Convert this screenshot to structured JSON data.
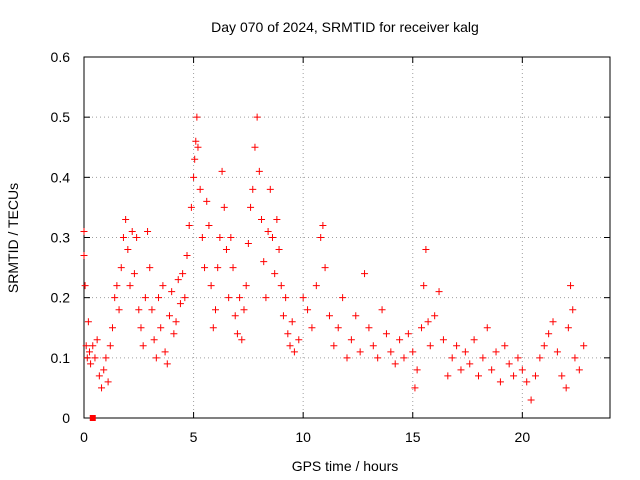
{
  "chart_data": {
    "type": "scatter",
    "title": "Day 070 of 2024, SRMTID for receiver kalg",
    "xlabel": "GPS time / hours",
    "ylabel": "SRMTID / TECUs",
    "xlim": [
      0,
      24
    ],
    "ylim": [
      0,
      0.6
    ],
    "xticks": [
      0,
      5,
      10,
      15,
      20
    ],
    "xtick_labels": [
      "0",
      "5",
      "10",
      "15",
      "20"
    ],
    "yticks": [
      0,
      0.1,
      0.2,
      0.3,
      0.4,
      0.5,
      0.6
    ],
    "ytick_labels": [
      "0",
      "0.1",
      "0.2",
      "0.3",
      "0.4",
      "0.5",
      "0.6"
    ],
    "grid": true,
    "marker": "plus",
    "color": "#ff0000",
    "series": [
      {
        "name": "SRMTID",
        "points": [
          [
            0.0,
            0.31
          ],
          [
            0.0,
            0.27
          ],
          [
            0.05,
            0.22
          ],
          [
            0.1,
            0.12
          ],
          [
            0.15,
            0.1
          ],
          [
            0.2,
            0.16
          ],
          [
            0.25,
            0.11
          ],
          [
            0.3,
            0.09
          ],
          [
            0.4,
            0.12
          ],
          [
            0.5,
            0.1
          ],
          [
            0.6,
            0.13
          ],
          [
            0.7,
            0.07
          ],
          [
            0.8,
            0.05
          ],
          [
            0.9,
            0.08
          ],
          [
            1.0,
            0.1
          ],
          [
            1.1,
            0.06
          ],
          [
            1.2,
            0.12
          ],
          [
            1.3,
            0.15
          ],
          [
            1.4,
            0.2
          ],
          [
            1.5,
            0.22
          ],
          [
            1.6,
            0.18
          ],
          [
            1.7,
            0.25
          ],
          [
            1.8,
            0.3
          ],
          [
            1.9,
            0.33
          ],
          [
            2.0,
            0.28
          ],
          [
            2.1,
            0.22
          ],
          [
            2.2,
            0.31
          ],
          [
            2.3,
            0.24
          ],
          [
            2.4,
            0.3
          ],
          [
            2.5,
            0.18
          ],
          [
            2.6,
            0.15
          ],
          [
            2.7,
            0.12
          ],
          [
            2.8,
            0.2
          ],
          [
            2.9,
            0.31
          ],
          [
            3.0,
            0.25
          ],
          [
            3.1,
            0.18
          ],
          [
            3.2,
            0.13
          ],
          [
            3.3,
            0.1
          ],
          [
            3.4,
            0.2
          ],
          [
            3.5,
            0.15
          ],
          [
            3.6,
            0.22
          ],
          [
            3.7,
            0.11
          ],
          [
            3.8,
            0.09
          ],
          [
            3.9,
            0.17
          ],
          [
            4.0,
            0.21
          ],
          [
            4.1,
            0.14
          ],
          [
            4.2,
            0.16
          ],
          [
            4.3,
            0.23
          ],
          [
            4.4,
            0.19
          ],
          [
            4.5,
            0.24
          ],
          [
            4.6,
            0.2
          ],
          [
            4.7,
            0.27
          ],
          [
            4.8,
            0.32
          ],
          [
            4.9,
            0.35
          ],
          [
            5.0,
            0.4
          ],
          [
            5.05,
            0.43
          ],
          [
            5.1,
            0.46
          ],
          [
            5.15,
            0.5
          ],
          [
            5.2,
            0.45
          ],
          [
            5.3,
            0.38
          ],
          [
            5.4,
            0.3
          ],
          [
            5.5,
            0.25
          ],
          [
            5.6,
            0.36
          ],
          [
            5.7,
            0.32
          ],
          [
            5.8,
            0.22
          ],
          [
            5.9,
            0.15
          ],
          [
            6.0,
            0.18
          ],
          [
            6.1,
            0.25
          ],
          [
            6.2,
            0.3
          ],
          [
            6.3,
            0.41
          ],
          [
            6.4,
            0.35
          ],
          [
            6.5,
            0.28
          ],
          [
            6.6,
            0.2
          ],
          [
            6.7,
            0.3
          ],
          [
            6.8,
            0.25
          ],
          [
            6.9,
            0.17
          ],
          [
            7.0,
            0.14
          ],
          [
            7.1,
            0.2
          ],
          [
            7.2,
            0.13
          ],
          [
            7.3,
            0.18
          ],
          [
            7.4,
            0.22
          ],
          [
            7.5,
            0.29
          ],
          [
            7.6,
            0.35
          ],
          [
            7.7,
            0.38
          ],
          [
            7.8,
            0.45
          ],
          [
            7.9,
            0.5
          ],
          [
            8.0,
            0.41
          ],
          [
            8.1,
            0.33
          ],
          [
            8.2,
            0.26
          ],
          [
            8.3,
            0.2
          ],
          [
            8.4,
            0.31
          ],
          [
            8.5,
            0.38
          ],
          [
            8.6,
            0.3
          ],
          [
            8.7,
            0.24
          ],
          [
            8.8,
            0.33
          ],
          [
            8.9,
            0.28
          ],
          [
            9.0,
            0.22
          ],
          [
            9.1,
            0.17
          ],
          [
            9.2,
            0.2
          ],
          [
            9.3,
            0.14
          ],
          [
            9.4,
            0.12
          ],
          [
            9.5,
            0.16
          ],
          [
            9.6,
            0.11
          ],
          [
            9.8,
            0.13
          ],
          [
            10.0,
            0.2
          ],
          [
            10.2,
            0.18
          ],
          [
            10.4,
            0.15
          ],
          [
            10.6,
            0.22
          ],
          [
            10.8,
            0.3
          ],
          [
            10.9,
            0.32
          ],
          [
            11.0,
            0.25
          ],
          [
            11.2,
            0.17
          ],
          [
            11.4,
            0.12
          ],
          [
            11.6,
            0.15
          ],
          [
            11.8,
            0.2
          ],
          [
            12.0,
            0.1
          ],
          [
            12.2,
            0.13
          ],
          [
            12.4,
            0.17
          ],
          [
            12.6,
            0.11
          ],
          [
            12.8,
            0.24
          ],
          [
            13.0,
            0.15
          ],
          [
            13.2,
            0.12
          ],
          [
            13.4,
            0.1
          ],
          [
            13.6,
            0.18
          ],
          [
            13.8,
            0.14
          ],
          [
            14.0,
            0.11
          ],
          [
            14.2,
            0.09
          ],
          [
            14.4,
            0.13
          ],
          [
            14.6,
            0.1
          ],
          [
            14.8,
            0.14
          ],
          [
            15.0,
            0.11
          ],
          [
            15.1,
            0.05
          ],
          [
            15.2,
            0.08
          ],
          [
            15.4,
            0.15
          ],
          [
            15.5,
            0.22
          ],
          [
            15.6,
            0.28
          ],
          [
            15.7,
            0.16
          ],
          [
            15.8,
            0.12
          ],
          [
            16.0,
            0.17
          ],
          [
            16.2,
            0.21
          ],
          [
            16.4,
            0.13
          ],
          [
            16.6,
            0.07
          ],
          [
            16.8,
            0.1
          ],
          [
            17.0,
            0.12
          ],
          [
            17.2,
            0.08
          ],
          [
            17.4,
            0.11
          ],
          [
            17.6,
            0.09
          ],
          [
            17.8,
            0.13
          ],
          [
            18.0,
            0.07
          ],
          [
            18.2,
            0.1
          ],
          [
            18.4,
            0.15
          ],
          [
            18.6,
            0.08
          ],
          [
            18.8,
            0.11
          ],
          [
            19.0,
            0.06
          ],
          [
            19.2,
            0.12
          ],
          [
            19.4,
            0.09
          ],
          [
            19.6,
            0.07
          ],
          [
            19.8,
            0.1
          ],
          [
            20.0,
            0.08
          ],
          [
            20.2,
            0.06
          ],
          [
            20.4,
            0.03
          ],
          [
            20.6,
            0.07
          ],
          [
            20.8,
            0.1
          ],
          [
            21.0,
            0.12
          ],
          [
            21.2,
            0.14
          ],
          [
            21.4,
            0.16
          ],
          [
            21.6,
            0.11
          ],
          [
            21.8,
            0.07
          ],
          [
            22.0,
            0.05
          ],
          [
            22.1,
            0.15
          ],
          [
            22.2,
            0.22
          ],
          [
            22.3,
            0.18
          ],
          [
            22.4,
            0.1
          ],
          [
            22.6,
            0.08
          ],
          [
            22.8,
            0.12
          ]
        ]
      }
    ],
    "outlier_marker": {
      "x": 0.4,
      "y": 0.0,
      "marker": "square"
    }
  }
}
